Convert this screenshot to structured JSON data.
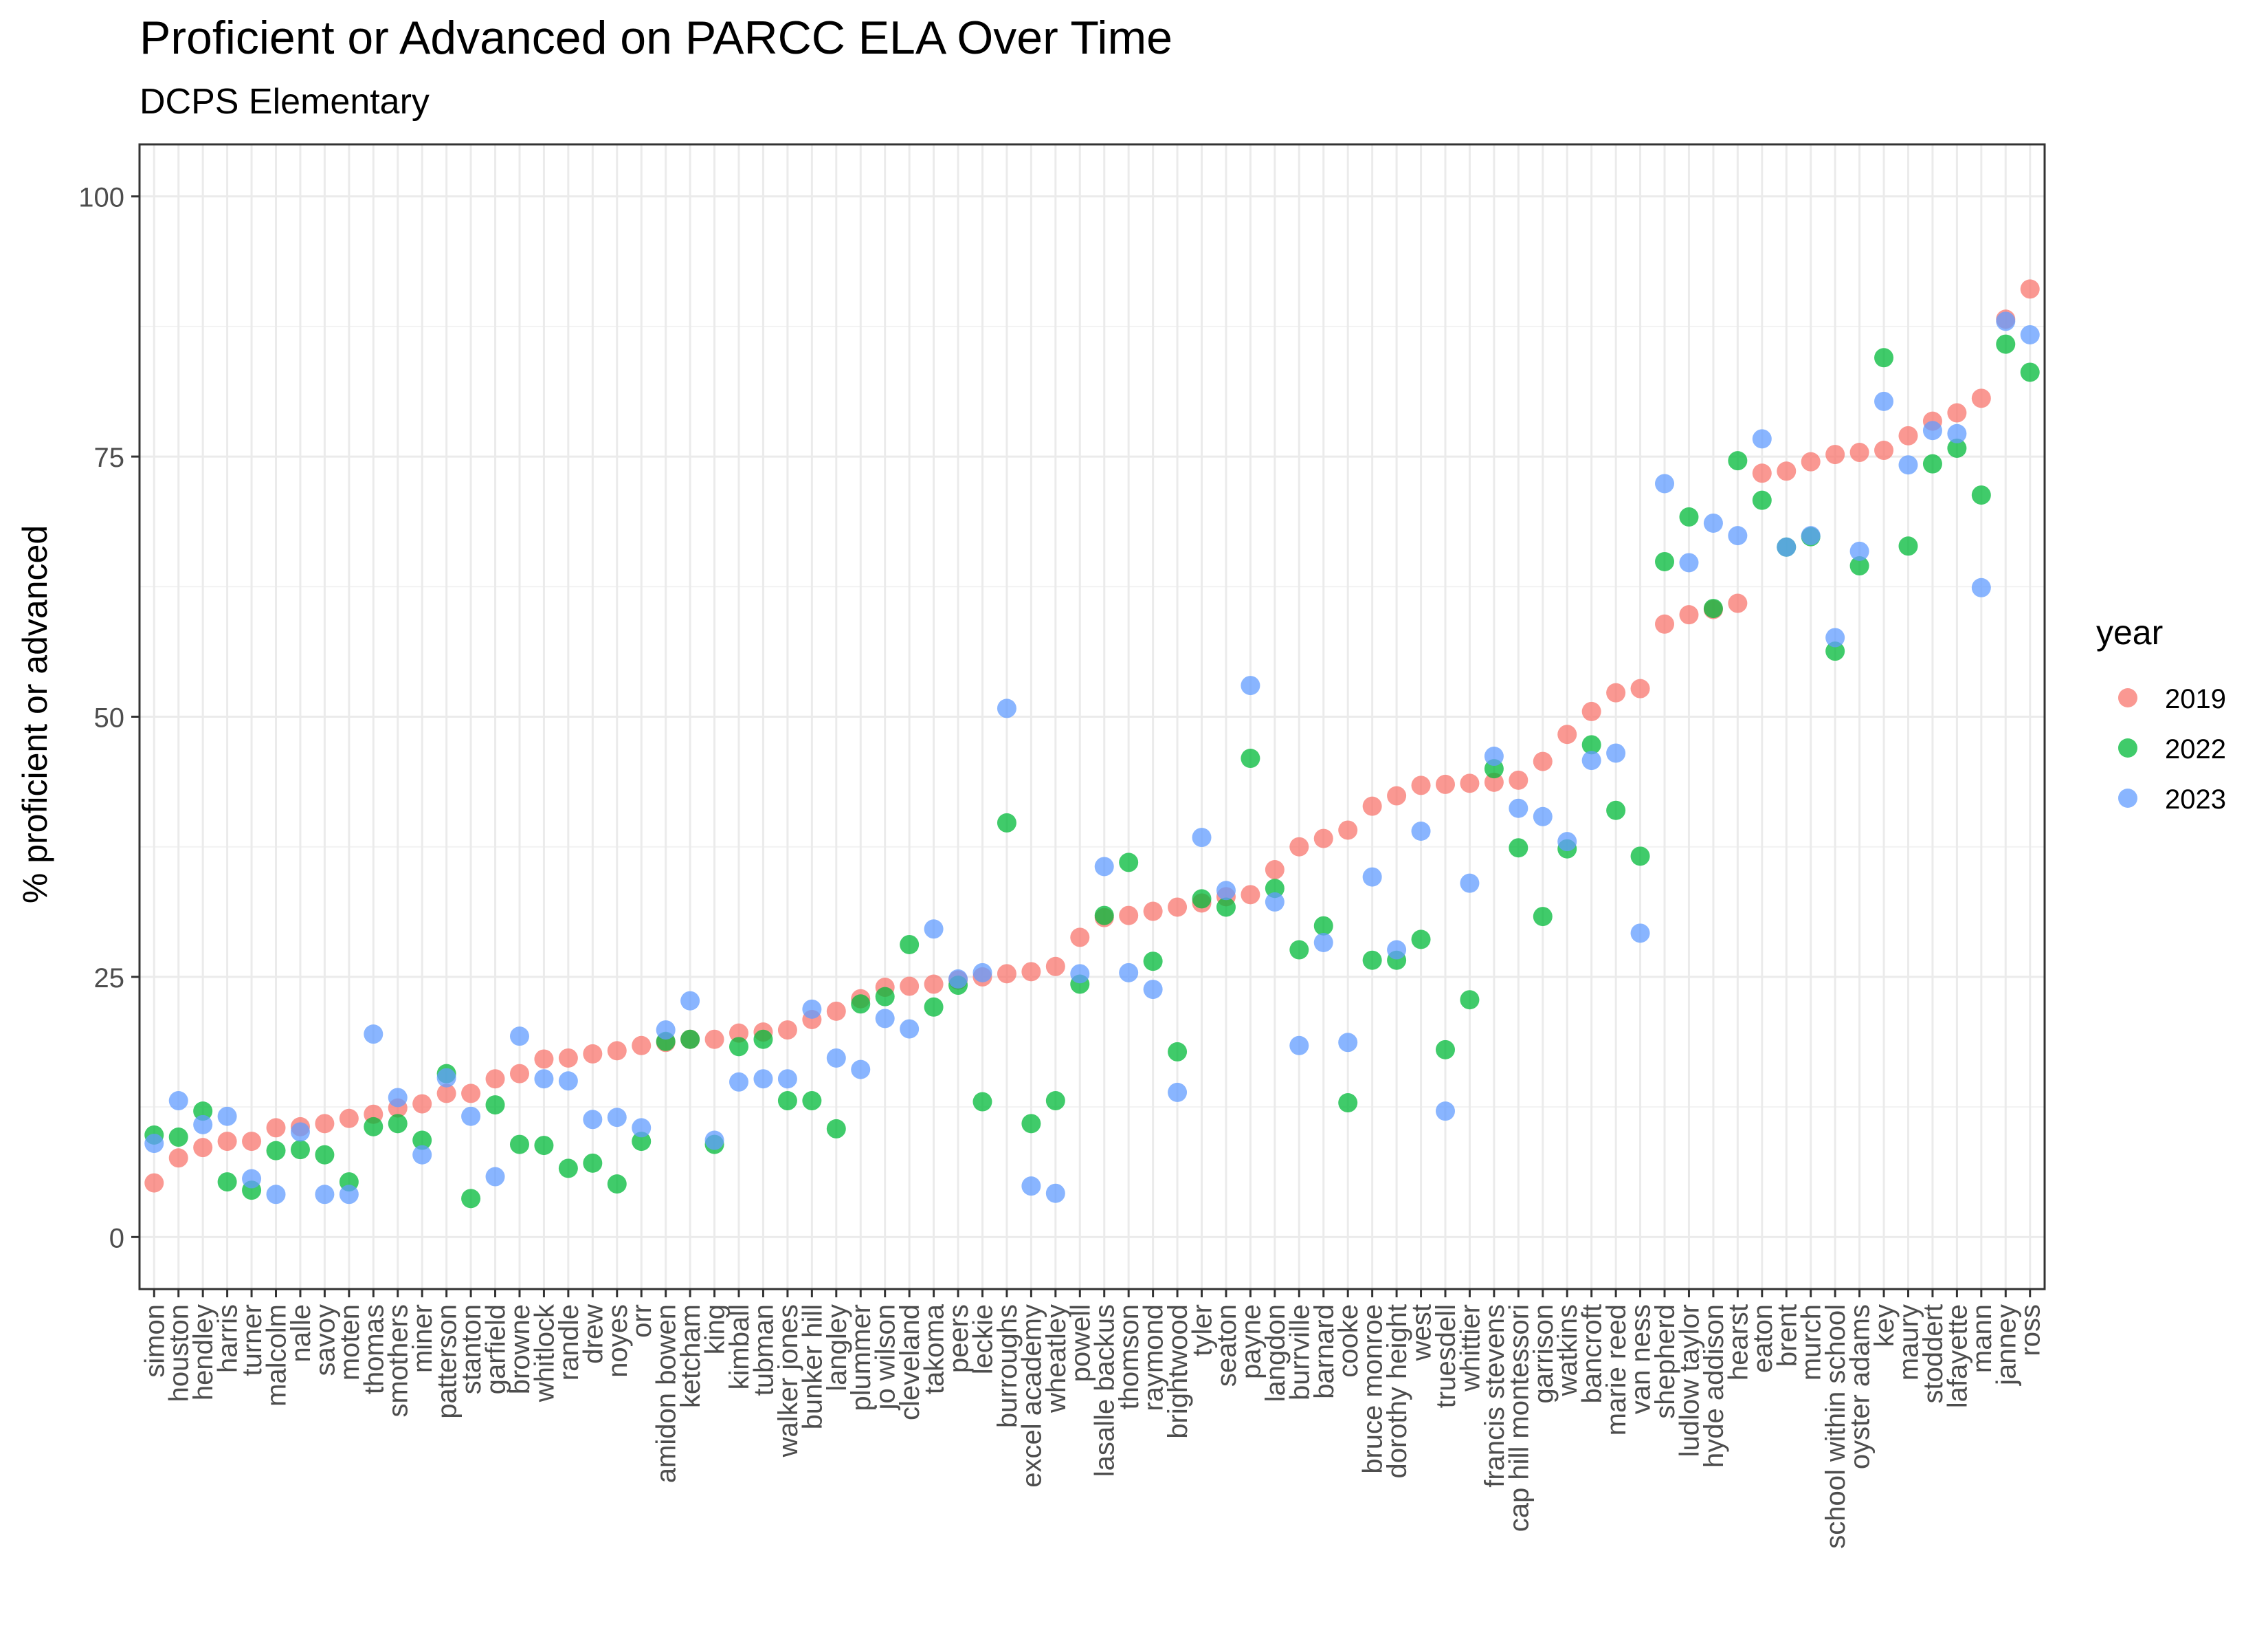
{
  "chart_data": {
    "type": "scatter",
    "title": "Proficient or Advanced on PARCC ELA Over Time",
    "subtitle": "DCPS Elementary",
    "xlabel": "",
    "ylabel": "% proficient or advanced",
    "ylim": [
      -5,
      105
    ],
    "yticks": [
      0,
      25,
      50,
      75,
      100
    ],
    "grid": true,
    "legend": {
      "title": "year",
      "position": "right"
    },
    "categories": [
      "simon",
      "houston",
      "hendley",
      "harris",
      "turner",
      "malcolm",
      "nalle",
      "savoy",
      "moten",
      "thomas",
      "smothers",
      "miner",
      "patterson",
      "stanton",
      "garfield",
      "browne",
      "whitlock",
      "randle",
      "drew",
      "noyes",
      "orr",
      "amidon bowen",
      "ketcham",
      "king",
      "kimball",
      "tubman",
      "walker jones",
      "bunker hill",
      "langley",
      "plummer",
      "jo wilson",
      "cleveland",
      "takoma",
      "peers",
      "leckie",
      "burroughs",
      "excel academy",
      "wheatley",
      "powell",
      "lasalle backus",
      "thomson",
      "raymond",
      "brightwood",
      "tyler",
      "seaton",
      "payne",
      "langdon",
      "burrville",
      "barnard",
      "cooke",
      "bruce monroe",
      "dorothy height",
      "west",
      "truesdell",
      "whittier",
      "francis stevens",
      "cap hill montessori",
      "garrison",
      "watkins",
      "bancroft",
      "marie reed",
      "van ness",
      "shepherd",
      "ludlow taylor",
      "hyde addison",
      "hearst",
      "eaton",
      "brent",
      "murch",
      "school within school",
      "oyster adams",
      "key",
      "maury",
      "stoddert",
      "lafayette",
      "mann",
      "janney",
      "ross"
    ],
    "series": [
      {
        "name": "2019",
        "color": "#F8766D",
        "values": [
          5.2,
          7.6,
          8.6,
          9.2,
          9.2,
          10.5,
          10.6,
          10.9,
          11.4,
          11.8,
          12.4,
          12.8,
          13.8,
          13.8,
          15.2,
          15.7,
          17.1,
          17.2,
          17.6,
          17.9,
          18.4,
          18.7,
          19.0,
          19.0,
          19.6,
          19.7,
          19.9,
          20.9,
          21.7,
          22.9,
          24.0,
          24.1,
          24.3,
          24.7,
          25.0,
          25.3,
          25.5,
          26.0,
          28.8,
          30.7,
          30.9,
          31.3,
          31.7,
          32.1,
          32.7,
          32.9,
          35.3,
          37.5,
          38.3,
          39.1,
          41.4,
          42.4,
          43.4,
          43.5,
          43.6,
          43.7,
          43.9,
          45.7,
          48.3,
          50.5,
          52.3,
          52.7,
          58.9,
          59.8,
          60.3,
          60.9,
          73.4,
          73.6,
          74.5,
          75.2,
          75.4,
          75.6,
          77.0,
          78.4,
          79.2,
          80.6,
          88.2,
          91.1
        ]
      },
      {
        "name": "2022",
        "color": "#00BA38",
        "values": [
          9.8,
          9.6,
          12.1,
          5.3,
          4.5,
          8.3,
          8.4,
          7.9,
          5.3,
          10.6,
          10.9,
          9.3,
          15.7,
          3.7,
          12.7,
          8.9,
          8.8,
          6.6,
          7.1,
          5.1,
          9.2,
          18.8,
          19.0,
          8.9,
          18.3,
          19.0,
          13.1,
          13.1,
          10.4,
          22.4,
          23.1,
          28.1,
          22.1,
          24.2,
          13.0,
          39.8,
          10.9,
          13.1,
          24.3,
          30.9,
          36.0,
          26.5,
          17.8,
          32.5,
          31.7,
          46.0,
          33.5,
          27.6,
          29.9,
          12.9,
          26.6,
          26.6,
          28.6,
          18.0,
          22.8,
          45.0,
          37.4,
          30.8,
          37.3,
          47.3,
          41.0,
          36.6,
          64.9,
          69.2,
          60.4,
          74.6,
          70.8,
          66.3,
          67.3,
          56.3,
          64.5,
          84.5,
          66.4,
          74.3,
          75.8,
          71.3,
          85.8,
          83.1
        ]
      },
      {
        "name": "2023",
        "color": "#619CFF",
        "values": [
          9.0,
          13.1,
          10.8,
          11.6,
          5.6,
          4.1,
          10.1,
          4.1,
          4.1,
          19.5,
          13.4,
          7.9,
          15.3,
          11.6,
          5.8,
          19.3,
          15.2,
          15.0,
          11.3,
          11.5,
          10.5,
          19.9,
          22.7,
          9.3,
          14.9,
          15.2,
          15.2,
          21.9,
          17.2,
          16.1,
          21.0,
          20.0,
          29.6,
          24.8,
          25.4,
          50.8,
          4.9,
          4.2,
          25.3,
          35.6,
          25.4,
          23.8,
          13.9,
          38.4,
          33.3,
          53.0,
          32.2,
          18.4,
          28.3,
          18.7,
          34.6,
          27.6,
          39.0,
          12.1,
          34.0,
          46.2,
          41.2,
          40.4,
          38.0,
          45.8,
          46.5,
          29.2,
          72.4,
          64.8,
          68.6,
          67.4,
          76.7,
          66.3,
          67.4,
          57.6,
          65.9,
          80.3,
          74.2,
          77.5,
          77.2,
          62.4,
          88.0,
          86.7
        ]
      }
    ]
  }
}
